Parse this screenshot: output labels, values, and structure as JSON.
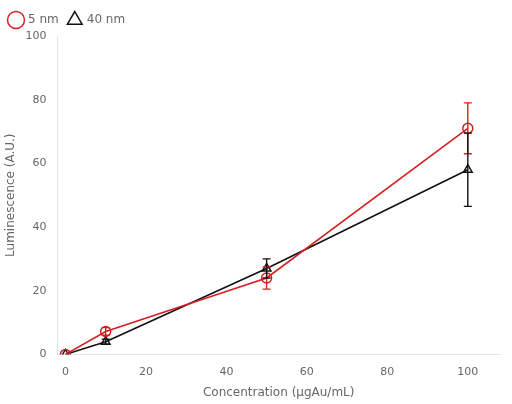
{
  "chart_data": {
    "type": "line",
    "xlabel": "Concentration (μgAu/mL)",
    "ylabel": "Luminescence (A.U.)",
    "series": [
      {
        "name": "5 nm",
        "color": "#d42020",
        "marker": "circle",
        "x": [
          0,
          10,
          50,
          100
        ],
        "values": [
          0,
          7.2,
          24.0,
          71.0
        ],
        "errors": [
          0,
          1.2,
          3.5,
          8.0
        ]
      },
      {
        "name": "40 nm",
        "color": "#111111",
        "marker": "triangle",
        "x": [
          0,
          10,
          50,
          100
        ],
        "values": [
          0,
          4.0,
          27.0,
          58.0
        ],
        "errors": [
          0,
          0.8,
          3.0,
          11.5
        ]
      }
    ],
    "xlim": [
      -2,
      108
    ],
    "xticks": [
      0,
      20,
      40,
      60,
      80,
      100
    ],
    "ylim": [
      0,
      100
    ],
    "yticks": [
      0,
      20,
      40,
      60,
      80,
      100
    ],
    "grid": false,
    "legend": "upper left"
  }
}
